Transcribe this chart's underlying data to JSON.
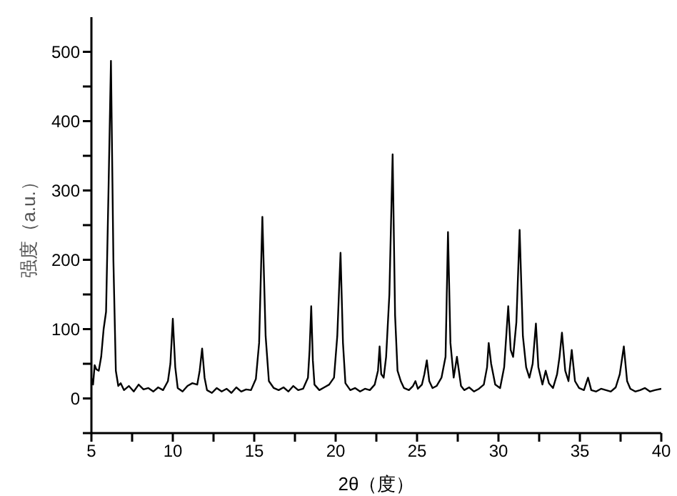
{
  "chart_data": {
    "type": "line",
    "xlabel": "2θ（度）",
    "ylabel": "强度（a.u.）",
    "xlim": [
      5,
      40
    ],
    "ylim": [
      -50,
      550
    ],
    "xticks": [
      5,
      {
        "value": 7.5,
        "label": null
      },
      10,
      {
        "value": 12.5,
        "label": null
      },
      15,
      {
        "value": 17.5,
        "label": null
      },
      20,
      {
        "value": 22.5,
        "label": null
      },
      25,
      {
        "value": 27.5,
        "label": null
      },
      30,
      {
        "value": 32.5,
        "label": null
      },
      35,
      {
        "value": 37.5,
        "label": null
      },
      40
    ],
    "yticks": [
      {
        "value": -50,
        "label": null
      },
      0,
      {
        "value": 50,
        "label": null
      },
      100,
      {
        "value": 150,
        "label": null
      },
      200,
      {
        "value": 250,
        "label": null
      },
      300,
      {
        "value": 350,
        "label": null
      },
      400,
      {
        "value": 450,
        "label": null
      },
      500
    ],
    "marker": "none",
    "line_style": "solid",
    "series": [
      {
        "color": "#000000",
        "x": [
          5.0,
          5.1,
          5.2,
          5.3,
          5.45,
          5.6,
          5.75,
          5.9,
          6.05,
          6.2,
          6.35,
          6.5,
          6.65,
          6.8,
          7.0,
          7.3,
          7.6,
          7.9,
          8.2,
          8.5,
          8.8,
          9.1,
          9.4,
          9.7,
          9.85,
          10.0,
          10.15,
          10.3,
          10.6,
          10.9,
          11.2,
          11.5,
          11.65,
          11.8,
          11.95,
          12.1,
          12.4,
          12.7,
          13.0,
          13.3,
          13.6,
          13.9,
          14.2,
          14.5,
          14.8,
          15.1,
          15.3,
          15.5,
          15.7,
          15.9,
          16.2,
          16.5,
          16.8,
          17.1,
          17.4,
          17.7,
          18.0,
          18.3,
          18.4,
          18.5,
          18.6,
          18.7,
          19.0,
          19.3,
          19.6,
          19.9,
          20.1,
          20.3,
          20.45,
          20.6,
          20.9,
          21.2,
          21.5,
          21.8,
          22.1,
          22.4,
          22.6,
          22.7,
          22.8,
          22.95,
          23.1,
          23.3,
          23.5,
          23.65,
          23.8,
          24.0,
          24.2,
          24.5,
          24.75,
          24.9,
          25.05,
          25.3,
          25.45,
          25.6,
          25.75,
          25.95,
          26.2,
          26.5,
          26.75,
          26.9,
          27.05,
          27.25,
          27.45,
          27.7,
          27.9,
          28.2,
          28.5,
          28.8,
          29.1,
          29.3,
          29.4,
          29.55,
          29.8,
          30.1,
          30.35,
          30.6,
          30.75,
          30.9,
          31.1,
          31.3,
          31.5,
          31.7,
          31.9,
          32.1,
          32.3,
          32.45,
          32.7,
          32.9,
          33.1,
          33.35,
          33.6,
          33.75,
          33.9,
          34.1,
          34.3,
          34.5,
          34.7,
          34.95,
          35.25,
          35.5,
          35.7,
          36.0,
          36.3,
          36.6,
          36.9,
          37.2,
          37.45,
          37.7,
          37.9,
          38.1,
          38.4,
          38.7,
          39.0,
          39.3,
          39.6,
          40.0
        ],
        "values": [
          30,
          20,
          48,
          42,
          40,
          60,
          100,
          125,
          300,
          487,
          200,
          40,
          18,
          22,
          12,
          18,
          10,
          20,
          13,
          15,
          10,
          16,
          12,
          25,
          50,
          115,
          45,
          15,
          10,
          18,
          22,
          20,
          40,
          72,
          30,
          12,
          8,
          15,
          10,
          14,
          8,
          16,
          10,
          13,
          12,
          28,
          80,
          262,
          90,
          25,
          15,
          12,
          16,
          10,
          18,
          12,
          14,
          30,
          70,
          133,
          55,
          20,
          12,
          16,
          20,
          30,
          90,
          210,
          80,
          22,
          12,
          15,
          10,
          14,
          12,
          20,
          40,
          75,
          35,
          30,
          60,
          150,
          352,
          120,
          40,
          25,
          15,
          12,
          18,
          25,
          14,
          20,
          35,
          55,
          25,
          15,
          18,
          30,
          60,
          240,
          80,
          30,
          60,
          18,
          12,
          16,
          10,
          14,
          20,
          45,
          80,
          50,
          20,
          15,
          45,
          133,
          70,
          60,
          110,
          243,
          90,
          45,
          30,
          50,
          108,
          45,
          20,
          40,
          22,
          15,
          35,
          60,
          95,
          40,
          25,
          70,
          25,
          15,
          12,
          30,
          12,
          10,
          14,
          12,
          10,
          16,
          35,
          75,
          25,
          14,
          10,
          12,
          15,
          10,
          12,
          14
        ]
      }
    ]
  }
}
